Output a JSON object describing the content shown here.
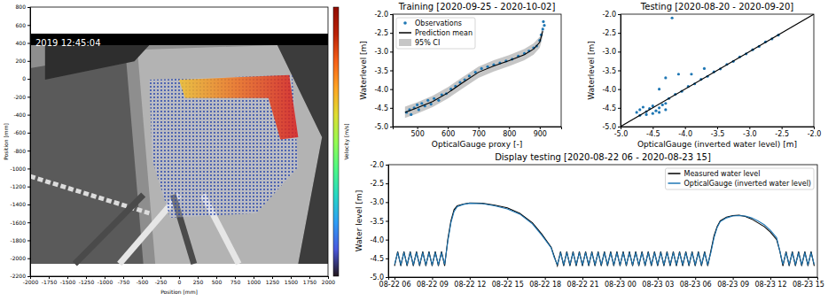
{
  "chart_data": [
    {
      "type": "image",
      "annotation": "2019 12:45:04",
      "x_label": "Position [mm]",
      "y_label": "Position [mm]",
      "colorbar_label": "Velocity [m/s]",
      "xlim": [
        -2000,
        2000
      ],
      "xticks": [
        -2000,
        -1750,
        -1500,
        -1250,
        -1000,
        -750,
        -500,
        -250,
        0,
        250,
        500,
        750,
        1000,
        1250,
        1500,
        1750,
        2000
      ],
      "ylim": [
        -2200,
        800
      ],
      "yticks": [
        800,
        600,
        400,
        200,
        0,
        -200,
        -400,
        -600,
        -800,
        -1000,
        -1200,
        -1400,
        -1600,
        -1800,
        -2000,
        -2200
      ]
    },
    {
      "type": "scatter",
      "title": "Training [2020-09-25 - 2020-10-02]",
      "x_label": "OpticalGauge proxy [-]",
      "y_label": "Waterlevel [m]",
      "xlim": [
        420,
        970
      ],
      "xticks": [
        500,
        600,
        700,
        800,
        900
      ],
      "ylim": [
        -5,
        -2
      ],
      "yticks": [
        {
          "value": -5,
          "label": "-5.0"
        },
        -4.5,
        {
          "value": -4,
          "label": "-4.0"
        },
        -3.5,
        {
          "value": -3,
          "label": "-3.0"
        },
        -2.5,
        {
          "value": -2,
          "label": "-2.0"
        }
      ],
      "legend": "upper left",
      "series": [
        {
          "name": "Observations",
          "type": "scatter",
          "color": "#1f77b4",
          "x": [
            465,
            475,
            480,
            490,
            500,
            505,
            515,
            525,
            535,
            545,
            555,
            570,
            580,
            595,
            610,
            625,
            640,
            655,
            670,
            690,
            710,
            730,
            750,
            770,
            790,
            810,
            830,
            850,
            865,
            880,
            890,
            900,
            905,
            910,
            912,
            915
          ],
          "values": [
            -4.62,
            -4.55,
            -4.68,
            -4.5,
            -4.42,
            -4.55,
            -4.38,
            -4.45,
            -4.3,
            -4.4,
            -4.25,
            -4.3,
            -4.15,
            -4.12,
            -4.0,
            -3.92,
            -3.82,
            -3.75,
            -3.65,
            -3.55,
            -3.45,
            -3.4,
            -3.35,
            -3.3,
            -3.25,
            -3.2,
            -3.12,
            -3.05,
            -2.98,
            -2.9,
            -2.85,
            -2.7,
            -2.55,
            -2.4,
            -2.2,
            -2.3
          ]
        },
        {
          "name": "Prediction mean",
          "type": "line",
          "color": "#000000",
          "x": [
            460,
            500,
            550,
            600,
            650,
            700,
            750,
            800,
            850,
            880,
            900,
            910
          ],
          "values": [
            -4.62,
            -4.5,
            -4.33,
            -4.1,
            -3.82,
            -3.55,
            -3.38,
            -3.24,
            -3.08,
            -2.93,
            -2.75,
            -2.45
          ]
        },
        {
          "name": "95% CI",
          "type": "area",
          "color": "#a0a0a0",
          "x": [
            460,
            500,
            550,
            600,
            650,
            700,
            750,
            800,
            850,
            880,
            900,
            910
          ],
          "lower": [
            -4.77,
            -4.65,
            -4.48,
            -4.25,
            -3.97,
            -3.7,
            -3.53,
            -3.39,
            -3.23,
            -3.08,
            -2.9,
            -2.6
          ],
          "upper": [
            -4.47,
            -4.35,
            -4.18,
            -3.95,
            -3.67,
            -3.4,
            -3.23,
            -3.09,
            -2.93,
            -2.78,
            -2.6,
            -2.3
          ]
        }
      ]
    },
    {
      "type": "scatter",
      "title": "Testing [2020-08-20 - 2020-09-20]",
      "x_label": "OpticalGauge (inverted water level) [m]",
      "y_label": "Waterlevel [m]",
      "xlim": [
        -5,
        -2
      ],
      "xticks": [
        {
          "value": -5,
          "label": "-5.0"
        },
        -4.5,
        {
          "value": -4,
          "label": "-4.0"
        },
        -3.5,
        {
          "value": -3,
          "label": "-3.0"
        },
        -2.5,
        {
          "value": -2,
          "label": "-2.0"
        }
      ],
      "ylim": [
        -5,
        -2
      ],
      "yticks": [
        {
          "value": -5,
          "label": "-5.0"
        },
        -4.5,
        {
          "value": -4,
          "label": "-4.0"
        },
        -3.5,
        {
          "value": -3,
          "label": "-3.0"
        },
        -2.5,
        {
          "value": -2,
          "label": "-2.0"
        }
      ],
      "series": [
        {
          "type": "scatter",
          "color": "#1f77b4",
          "x": [
            -4.75,
            -4.7,
            -4.65,
            -4.6,
            -4.55,
            -4.5,
            -4.45,
            -4.4,
            -4.35,
            -4.3,
            -4.7,
            -4.6,
            -4.5,
            -4.4,
            -4.3,
            -4.25,
            -4.15,
            -4.05,
            -3.95,
            -3.85,
            -3.75,
            -3.65,
            -3.55,
            -3.45,
            -3.35,
            -3.25,
            -3.15,
            -3.05,
            -2.95,
            -2.85,
            -2.75,
            -2.65,
            -2.55,
            -4.4,
            -4.3,
            -4.2,
            -4.1,
            -3.9,
            -3.7
          ],
          "values": [
            -4.62,
            -4.55,
            -4.48,
            -4.6,
            -4.52,
            -4.45,
            -4.58,
            -4.5,
            -4.42,
            -4.38,
            -4.7,
            -4.68,
            -4.65,
            -4.62,
            -4.55,
            -4.25,
            -4.14,
            -4.06,
            -3.93,
            -3.86,
            -3.74,
            -3.66,
            -3.54,
            -3.46,
            -3.34,
            -3.26,
            -3.14,
            -3.06,
            -2.95,
            -2.86,
            -2.74,
            -2.66,
            -2.56,
            -4.0,
            -3.7,
            -2.1,
            -3.6,
            -3.6,
            -3.45
          ]
        },
        {
          "type": "line",
          "color": "#000000",
          "x": [
            -5,
            -2
          ],
          "values": [
            -5,
            -2
          ]
        }
      ]
    },
    {
      "type": "line",
      "title": "Display testing [2020-08-22 06 - 2020-08-23 15]",
      "y_label": "Water level [m]",
      "xlim": [
        "2020-08-22 05:30",
        "2020-08-23 15:45"
      ],
      "xticks": [
        {
          "value": "2020-08-22 06:00",
          "label": "08-22 06"
        },
        {
          "value": "2020-08-22 09:00",
          "label": "08-22 09"
        },
        {
          "value": "2020-08-22 12:00",
          "label": "08-22 12"
        },
        {
          "value": "2020-08-22 15:00",
          "label": "08-22 15"
        },
        {
          "value": "2020-08-22 18:00",
          "label": "08-22 18"
        },
        {
          "value": "2020-08-22 21:00",
          "label": "08-22 21"
        },
        {
          "value": "2020-08-23 00:00",
          "label": "08-23 00"
        },
        {
          "value": "2020-08-23 03:00",
          "label": "08-23 03"
        },
        {
          "value": "2020-08-23 06:00",
          "label": "08-23 06"
        },
        {
          "value": "2020-08-23 09:00",
          "label": "08-23 09"
        },
        {
          "value": "2020-08-23 12:00",
          "label": "08-23 12"
        },
        {
          "value": "2020-08-23 15:00",
          "label": "08-23 15"
        }
      ],
      "ylim": [
        -5,
        -2
      ],
      "yticks": [
        {
          "value": -5,
          "label": "-5.0"
        },
        -4.5,
        {
          "value": -4,
          "label": "-4.0"
        },
        -3.5,
        {
          "value": -3,
          "label": "-3.0"
        },
        -2.5,
        {
          "value": -2,
          "label": "-2.0"
        }
      ],
      "legend": "upper right",
      "x": [
        "2020-08-22 06:00",
        "2020-08-22 06:15",
        "2020-08-22 06:30",
        "2020-08-22 06:45",
        "2020-08-22 07:00",
        "2020-08-22 07:15",
        "2020-08-22 07:30",
        "2020-08-22 07:45",
        "2020-08-22 08:00",
        "2020-08-22 08:15",
        "2020-08-22 08:30",
        "2020-08-22 08:45",
        "2020-08-22 09:00",
        "2020-08-22 09:15",
        "2020-08-22 09:30",
        "2020-08-22 09:45",
        "2020-08-22 10:00",
        "2020-08-22 10:15",
        "2020-08-22 10:30",
        "2020-08-22 10:45",
        "2020-08-22 11:00",
        "2020-08-22 11:30",
        "2020-08-22 12:00",
        "2020-08-22 13:00",
        "2020-08-22 14:00",
        "2020-08-22 15:00",
        "2020-08-22 16:00",
        "2020-08-22 17:00",
        "2020-08-22 17:45",
        "2020-08-22 18:30",
        "2020-08-22 18:45",
        "2020-08-22 19:00",
        "2020-08-22 19:15",
        "2020-08-22 19:30",
        "2020-08-22 19:45",
        "2020-08-22 20:00",
        "2020-08-22 20:15",
        "2020-08-22 20:30",
        "2020-08-22 20:45",
        "2020-08-22 21:00",
        "2020-08-22 21:15",
        "2020-08-22 21:30",
        "2020-08-22 21:45",
        "2020-08-22 22:00",
        "2020-08-22 22:15",
        "2020-08-22 22:30",
        "2020-08-22 22:45",
        "2020-08-22 23:00",
        "2020-08-22 23:15",
        "2020-08-22 23:30",
        "2020-08-22 23:45",
        "2020-08-23 00:00",
        "2020-08-23 00:15",
        "2020-08-23 00:30",
        "2020-08-23 00:45",
        "2020-08-23 01:00",
        "2020-08-23 01:15",
        "2020-08-23 01:30",
        "2020-08-23 01:45",
        "2020-08-23 02:00",
        "2020-08-23 02:15",
        "2020-08-23 02:30",
        "2020-08-23 02:45",
        "2020-08-23 03:00",
        "2020-08-23 03:15",
        "2020-08-23 03:30",
        "2020-08-23 03:45",
        "2020-08-23 04:00",
        "2020-08-23 04:15",
        "2020-08-23 04:30",
        "2020-08-23 04:45",
        "2020-08-23 05:00",
        "2020-08-23 05:15",
        "2020-08-23 05:30",
        "2020-08-23 05:45",
        "2020-08-23 06:00",
        "2020-08-23 06:15",
        "2020-08-23 06:30",
        "2020-08-23 06:45",
        "2020-08-23 07:00",
        "2020-08-23 07:15",
        "2020-08-23 07:30",
        "2020-08-23 07:45",
        "2020-08-23 08:00",
        "2020-08-23 08:30",
        "2020-08-23 09:00",
        "2020-08-23 09:30",
        "2020-08-23 10:00",
        "2020-08-23 10:30",
        "2020-08-23 11:00",
        "2020-08-23 11:30",
        "2020-08-23 12:00",
        "2020-08-23 12:30",
        "2020-08-23 12:45",
        "2020-08-23 13:00",
        "2020-08-23 13:15",
        "2020-08-23 13:30",
        "2020-08-23 13:45",
        "2020-08-23 14:00",
        "2020-08-23 14:15",
        "2020-08-23 14:30",
        "2020-08-23 14:45",
        "2020-08-23 15:00",
        "2020-08-23 15:15",
        "2020-08-23 15:30"
      ],
      "series": [
        {
          "name": "Measured water level",
          "color": "#000000",
          "values": [
            -4.7,
            -4.32,
            -4.7,
            -4.32,
            -4.7,
            -4.32,
            -4.7,
            -4.32,
            -4.7,
            -4.32,
            -4.7,
            -4.32,
            -4.7,
            -4.32,
            -4.7,
            -4.32,
            -4.7,
            -4.0,
            -3.5,
            -3.2,
            -3.1,
            -3.05,
            -3.02,
            -3.03,
            -3.08,
            -3.15,
            -3.3,
            -3.55,
            -3.85,
            -4.2,
            -4.45,
            -4.7,
            -4.32,
            -4.7,
            -4.32,
            -4.7,
            -4.32,
            -4.7,
            -4.32,
            -4.7,
            -4.32,
            -4.7,
            -4.32,
            -4.7,
            -4.32,
            -4.7,
            -4.32,
            -4.7,
            -4.32,
            -4.7,
            -4.32,
            -4.7,
            -4.32,
            -4.7,
            -4.32,
            -4.7,
            -4.32,
            -4.7,
            -4.32,
            -4.7,
            -4.32,
            -4.7,
            -4.32,
            -4.7,
            -4.32,
            -4.7,
            -4.32,
            -4.7,
            -4.32,
            -4.7,
            -4.32,
            -4.7,
            -4.32,
            -4.7,
            -4.32,
            -4.7,
            -4.32,
            -4.7,
            -4.32,
            -4.7,
            -4.3,
            -3.9,
            -3.65,
            -3.5,
            -3.4,
            -3.36,
            -3.35,
            -3.38,
            -3.45,
            -3.55,
            -3.65,
            -3.8,
            -4.0,
            -4.3,
            -4.7,
            -4.32,
            -4.7,
            -4.32,
            -4.7,
            -4.32,
            -4.7,
            -4.32,
            -4.7,
            -4.32,
            -4.7
          ]
        },
        {
          "name": "OpticalGauge (inverted water level)",
          "color": "#1f77b4",
          "values": [
            -4.66,
            -4.36,
            -4.66,
            -4.36,
            -4.66,
            -4.36,
            -4.66,
            -4.36,
            -4.66,
            -4.36,
            -4.66,
            -4.36,
            -4.66,
            -4.36,
            -4.66,
            -4.36,
            -4.66,
            -4.05,
            -3.55,
            -3.25,
            -3.12,
            -3.06,
            -3.03,
            -3.04,
            -3.1,
            -3.18,
            -3.32,
            -3.58,
            -3.88,
            -4.22,
            -4.48,
            -4.66,
            -4.36,
            -4.66,
            -4.36,
            -4.66,
            -4.36,
            -4.66,
            -4.36,
            -4.66,
            -4.36,
            -4.66,
            -4.36,
            -4.66,
            -4.36,
            -4.66,
            -4.36,
            -4.66,
            -4.36,
            -4.66,
            -4.36,
            -4.66,
            -4.36,
            -4.66,
            -4.36,
            -4.66,
            -4.36,
            -4.66,
            -4.36,
            -4.66,
            -4.36,
            -4.66,
            -4.36,
            -4.66,
            -4.36,
            -4.66,
            -4.36,
            -4.66,
            -4.36,
            -4.66,
            -4.36,
            -4.66,
            -4.36,
            -4.66,
            -4.36,
            -4.66,
            -4.36,
            -4.66,
            -4.36,
            -4.66,
            -4.35,
            -3.95,
            -3.68,
            -3.52,
            -3.42,
            -3.37,
            -3.36,
            -3.37,
            -3.42,
            -3.5,
            -3.6,
            -3.75,
            -3.95,
            -4.3,
            -4.66,
            -4.36,
            -4.66,
            -4.36,
            -4.66,
            -4.36,
            -4.66,
            -4.36,
            -4.66,
            -4.36,
            -4.66
          ]
        }
      ]
    }
  ]
}
